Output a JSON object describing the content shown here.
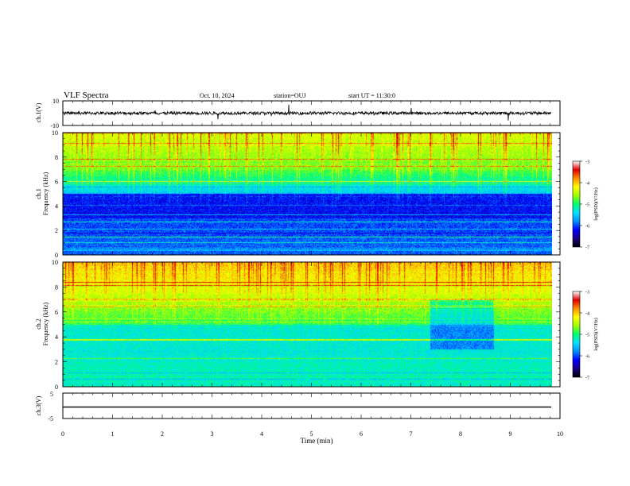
{
  "header": {
    "title": "VLF Spectra",
    "date": "Oct. 10, 2024",
    "station": "station=OUJ",
    "start": "start UT = 11:30:0"
  },
  "colors": {
    "colormap": [
      "#000000",
      "#1a0082",
      "#0000ff",
      "#0090ff",
      "#00e0ff",
      "#00ff70",
      "#a0ff00",
      "#ffff00",
      "#ff9000",
      "#e00000",
      "#ffffff"
    ]
  },
  "chart_data": [
    {
      "type": "line",
      "ylabel": "ch.1(V)",
      "ylim": [
        -10,
        10
      ],
      "y_ticks": [
        "10",
        "-10"
      ],
      "xlim": [
        0,
        10
      ],
      "series_note": "noisy waveform around ~0 V"
    },
    {
      "type": "heatmap",
      "ylabel": "ch.1 Frequency (kHz)",
      "ylabel_lines": [
        "ch.1",
        "Frequency (kHz)"
      ],
      "ylim": [
        0,
        10
      ],
      "y_ticks": [
        "0",
        "2",
        "4",
        "6",
        "8",
        "10"
      ],
      "xlim": [
        0,
        10
      ],
      "colorbar": {
        "label": "log(PSD)(V²/Hz)",
        "min": -7,
        "max": -3,
        "ticks": [
          "-7",
          "-6",
          "-5",
          "-4",
          "-3"
        ]
      }
    },
    {
      "type": "heatmap",
      "ylabel": "ch.2 Frequency (kHz)",
      "ylabel_lines": [
        "ch.2",
        "Frequency (kHz)"
      ],
      "ylim": [
        0,
        10
      ],
      "y_ticks": [
        "0",
        "2",
        "4",
        "6",
        "8",
        "10"
      ],
      "xlim": [
        0,
        10
      ],
      "colorbar": {
        "label": "log(PSD)(V²/Hz)",
        "min": -7,
        "max": -3,
        "ticks": [
          "-7",
          "-6",
          "-5",
          "-4",
          "-3"
        ]
      }
    },
    {
      "type": "line",
      "ylabel": "ch.3(V)",
      "ylim": [
        -5,
        5
      ],
      "y_ticks": [
        "5",
        "-5"
      ],
      "xlim": [
        0,
        10
      ],
      "x": [
        0,
        10
      ],
      "y": [
        -0.5,
        -0.5
      ]
    }
  ],
  "xaxis": {
    "label": "Time (min)",
    "ticks": [
      "0",
      "1",
      "2",
      "3",
      "4",
      "5",
      "6",
      "7",
      "8",
      "9",
      "10"
    ],
    "range": [
      0,
      10
    ]
  }
}
